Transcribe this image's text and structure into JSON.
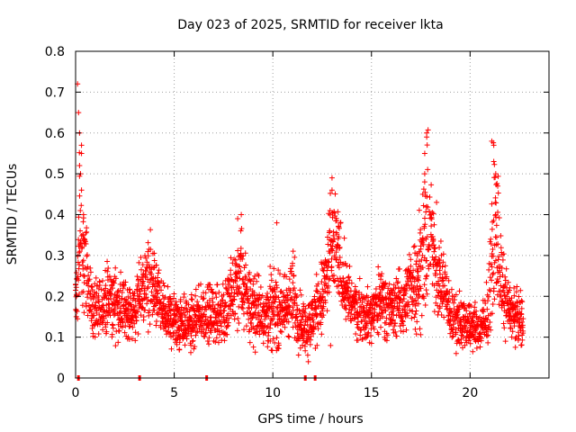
{
  "chart_data": {
    "type": "scatter",
    "title": "Day 023 of 2025, SRMTID for receiver lkta",
    "xlabel": "GPS time / hours",
    "ylabel": "SRMTID / TECUs",
    "xlim": [
      0,
      24
    ],
    "ylim": [
      0,
      0.8
    ],
    "xticks": [
      0,
      5,
      10,
      15,
      20
    ],
    "xtick_labels": [
      "0",
      "5",
      "10",
      "15",
      "20"
    ],
    "yticks": [
      0,
      0.1,
      0.2,
      0.3,
      0.4,
      0.5,
      0.6,
      0.7,
      0.8
    ],
    "ytick_labels": [
      "0",
      "0.1",
      "0.2",
      "0.3",
      "0.4",
      "0.5",
      "0.6",
      "0.7",
      "0.8"
    ],
    "grid": true,
    "marker": "+",
    "color": "#ff0000",
    "series": [
      {
        "name": "SRMTID",
        "envelope_hours": [
          0.0,
          0.1,
          0.2,
          0.3,
          0.4,
          0.5,
          0.7,
          1.0,
          1.5,
          2.0,
          2.5,
          3.0,
          3.3,
          3.7,
          4.0,
          4.3,
          4.7,
          5.0,
          5.5,
          6.0,
          6.5,
          7.0,
          7.5,
          8.0,
          8.3,
          8.7,
          9.0,
          9.5,
          10.0,
          10.5,
          11.0,
          11.3,
          11.7,
          12.0,
          12.5,
          12.8,
          13.0,
          13.2,
          13.5,
          13.8,
          14.0,
          14.5,
          15.0,
          15.5,
          16.0,
          16.5,
          17.0,
          17.3,
          17.6,
          17.9,
          18.2,
          18.5,
          18.8,
          19.0,
          19.5,
          20.0,
          20.5,
          20.8,
          21.0,
          21.2,
          21.4,
          21.6,
          21.8,
          22.0,
          22.3,
          22.7
        ],
        "envelope_center": [
          0.2,
          0.22,
          0.35,
          0.3,
          0.28,
          0.3,
          0.2,
          0.15,
          0.19,
          0.18,
          0.17,
          0.16,
          0.2,
          0.24,
          0.22,
          0.17,
          0.15,
          0.14,
          0.14,
          0.13,
          0.16,
          0.15,
          0.16,
          0.2,
          0.25,
          0.2,
          0.17,
          0.16,
          0.17,
          0.16,
          0.2,
          0.15,
          0.12,
          0.14,
          0.2,
          0.25,
          0.3,
          0.32,
          0.26,
          0.2,
          0.18,
          0.16,
          0.15,
          0.2,
          0.17,
          0.18,
          0.22,
          0.25,
          0.3,
          0.38,
          0.28,
          0.24,
          0.2,
          0.15,
          0.14,
          0.13,
          0.12,
          0.13,
          0.2,
          0.38,
          0.35,
          0.22,
          0.2,
          0.17,
          0.15,
          0.14
        ],
        "envelope_spread": [
          0.05,
          0.1,
          0.15,
          0.12,
          0.1,
          0.08,
          0.06,
          0.05,
          0.06,
          0.06,
          0.05,
          0.05,
          0.07,
          0.08,
          0.07,
          0.05,
          0.05,
          0.05,
          0.05,
          0.05,
          0.05,
          0.05,
          0.06,
          0.08,
          0.1,
          0.08,
          0.06,
          0.06,
          0.07,
          0.06,
          0.08,
          0.06,
          0.05,
          0.05,
          0.07,
          0.1,
          0.12,
          0.1,
          0.07,
          0.06,
          0.05,
          0.05,
          0.05,
          0.06,
          0.05,
          0.06,
          0.07,
          0.09,
          0.12,
          0.15,
          0.08,
          0.07,
          0.06,
          0.05,
          0.05,
          0.04,
          0.04,
          0.05,
          0.08,
          0.15,
          0.12,
          0.07,
          0.06,
          0.05,
          0.05,
          0.04
        ],
        "spikes": [
          {
            "x": 0.1,
            "y": 0.72
          },
          {
            "x": 0.15,
            "y": 0.65
          },
          {
            "x": 0.2,
            "y": 0.6
          },
          {
            "x": 0.3,
            "y": 0.57
          },
          {
            "x": 0.3,
            "y": 0.55
          },
          {
            "x": 0.2,
            "y": 0.52
          },
          {
            "x": 0.25,
            "y": 0.5
          },
          {
            "x": 0.3,
            "y": 0.46
          },
          {
            "x": 0.4,
            "y": 0.4
          },
          {
            "x": 8.4,
            "y": 0.4
          },
          {
            "x": 10.2,
            "y": 0.38
          },
          {
            "x": 13.0,
            "y": 0.49
          },
          {
            "x": 13.0,
            "y": 0.46
          },
          {
            "x": 12.9,
            "y": 0.41
          },
          {
            "x": 17.8,
            "y": 0.6
          },
          {
            "x": 17.8,
            "y": 0.59
          },
          {
            "x": 17.7,
            "y": 0.55
          },
          {
            "x": 17.7,
            "y": 0.5
          },
          {
            "x": 17.6,
            "y": 0.45
          },
          {
            "x": 18.3,
            "y": 0.43
          },
          {
            "x": 21.1,
            "y": 0.58
          },
          {
            "x": 21.2,
            "y": 0.57
          },
          {
            "x": 21.2,
            "y": 0.53
          },
          {
            "x": 21.3,
            "y": 0.5
          },
          {
            "x": 21.4,
            "y": 0.47
          },
          {
            "x": 21.3,
            "y": 0.4
          },
          {
            "x": 11.8,
            "y": 0.04
          }
        ],
        "zeros": [
          0.1,
          3.2,
          6.6,
          11.6,
          12.1
        ]
      }
    ]
  }
}
